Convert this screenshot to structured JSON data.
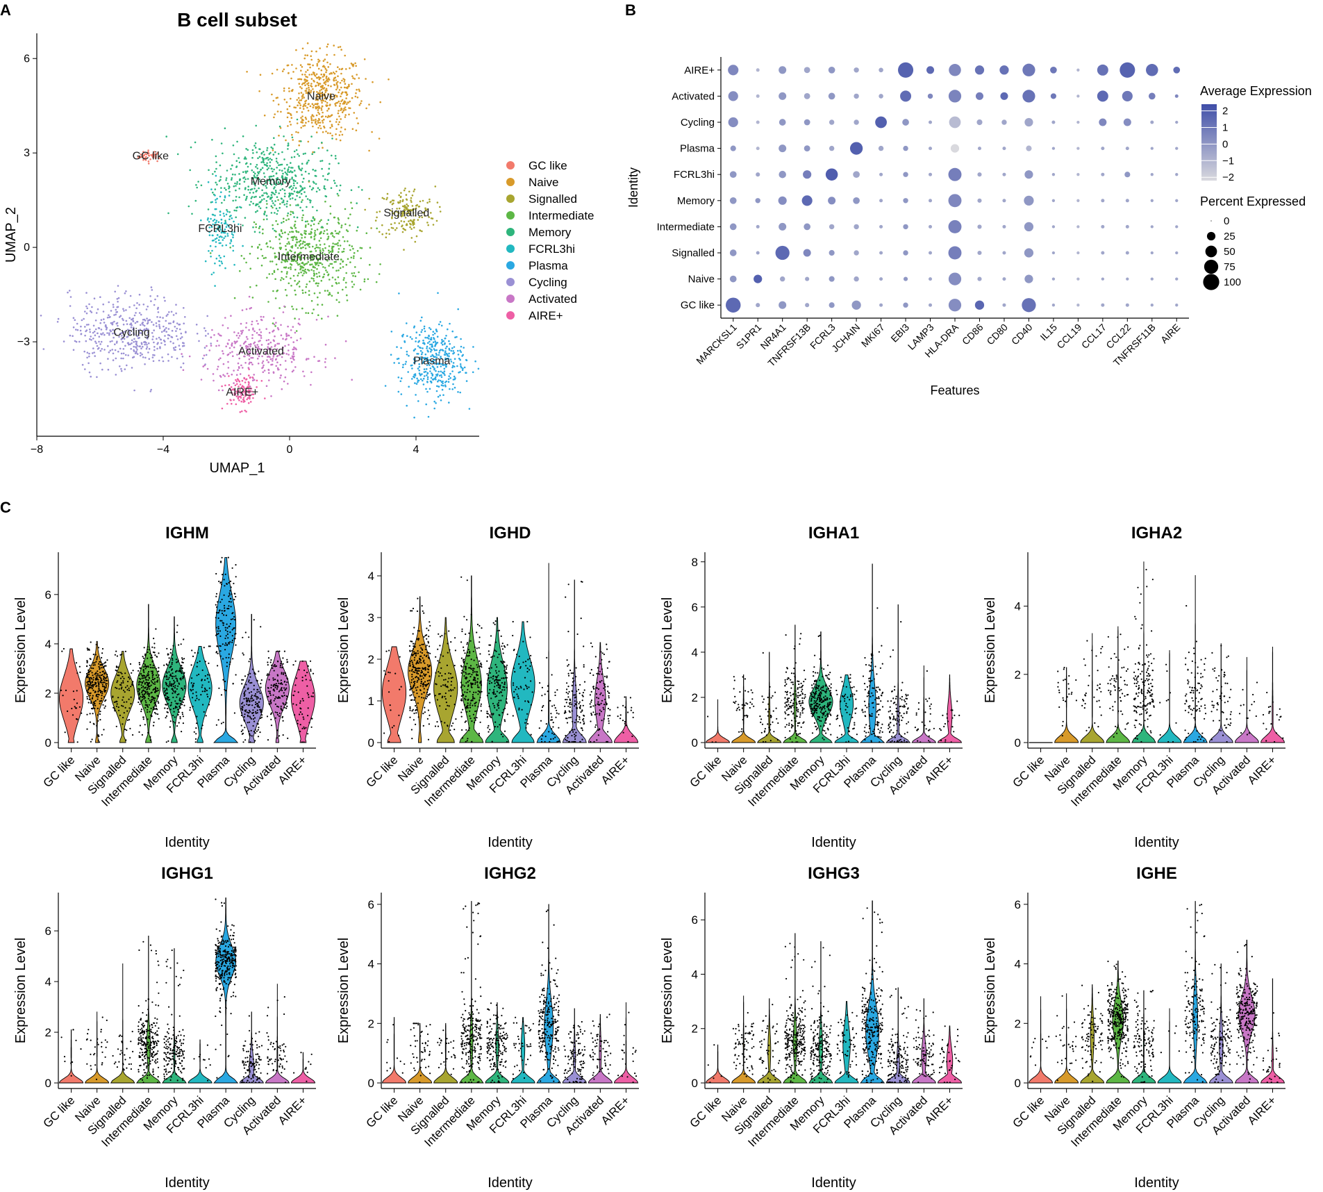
{
  "panel_labels": {
    "a": "A",
    "b": "B",
    "c": "C"
  },
  "colors": {
    "GC like": "#F27A6B",
    "Naive": "#D89A2A",
    "Signalled": "#A8A530",
    "Intermediate": "#5DB745",
    "Memory": "#2EB57C",
    "FCRL3hi": "#22B8C0",
    "Plasma": "#2AA8E2",
    "Cycling": "#9A90D4",
    "Activated": "#C877C6",
    "AIRE+": "#EE5FA5",
    "dot_high": "#3F4EA8",
    "dot_low": "#D9D9DE"
  },
  "identities": [
    "GC like",
    "Naive",
    "Signalled",
    "Intermediate",
    "Memory",
    "FCRL3hi",
    "Plasma",
    "Cycling",
    "Activated",
    "AIRE+"
  ],
  "chart_data": [
    {
      "type": "scatter",
      "title": "B cell subset",
      "xlabel": "UMAP_1",
      "ylabel": "UMAP_2",
      "xlim": [
        -8,
        6
      ],
      "ylim": [
        -6,
        6.8
      ],
      "xticks": [
        -8,
        -4,
        0,
        4
      ],
      "yticks": [
        -3,
        0,
        3,
        6
      ],
      "legend_position": "right",
      "clusters": [
        {
          "name": "GC like",
          "label": "GC like",
          "cx": -4.4,
          "cy": 2.9,
          "sx": 0.25,
          "sy": 0.12,
          "n": 40
        },
        {
          "name": "Naive",
          "label": "Naive",
          "cx": 1.0,
          "cy": 4.8,
          "sx": 0.9,
          "sy": 0.9,
          "n": 520
        },
        {
          "name": "Signalled",
          "label": "Signalled",
          "cx": 3.7,
          "cy": 1.1,
          "sx": 0.6,
          "sy": 0.55,
          "n": 170
        },
        {
          "name": "Intermediate",
          "label": "Intermediate",
          "cx": 0.6,
          "cy": -0.3,
          "sx": 1.1,
          "sy": 1.0,
          "n": 560
        },
        {
          "name": "Memory",
          "label": "Memory",
          "cx": -0.6,
          "cy": 2.1,
          "sx": 1.3,
          "sy": 0.9,
          "n": 520
        },
        {
          "name": "FCRL3hi",
          "label": "FCRL3hi",
          "cx": -2.2,
          "cy": 0.6,
          "sx": 0.35,
          "sy": 0.9,
          "n": 120
        },
        {
          "name": "Plasma",
          "label": "Plasma",
          "cx": 4.5,
          "cy": -3.6,
          "sx": 0.7,
          "sy": 0.8,
          "n": 380
        },
        {
          "name": "Cycling",
          "label": "Cycling",
          "cx": -5.0,
          "cy": -2.7,
          "sx": 1.3,
          "sy": 0.8,
          "n": 460
        },
        {
          "name": "Activated",
          "label": "Activated",
          "cx": -0.9,
          "cy": -3.3,
          "sx": 1.2,
          "sy": 0.7,
          "n": 330
        },
        {
          "name": "AIRE+",
          "label": "AIRE+",
          "cx": -1.5,
          "cy": -4.6,
          "sx": 0.35,
          "sy": 0.35,
          "n": 110
        }
      ]
    },
    {
      "type": "dot",
      "xlabel": "Features",
      "ylabel": "Identity",
      "features": [
        "MARCKSL1",
        "S1PR1",
        "NR4A1",
        "TNFRSF13B",
        "FCRL3",
        "JCHAIN",
        "MKI67",
        "EBI3",
        "LAMP3",
        "HLA-DRA",
        "CD86",
        "CD80",
        "CD40",
        "IL15",
        "CCL19",
        "CCL17",
        "CCL22",
        "TNFRSF11B",
        "AIRE"
      ],
      "rows": [
        "AIRE+",
        "Activated",
        "Cycling",
        "Plasma",
        "FCRL3hi",
        "Memory",
        "Intermediate",
        "Signalled",
        "Naive",
        "GC like"
      ],
      "size_legend_title": "Percent Expressed",
      "size_legend_values": [
        0,
        25,
        50,
        75,
        100
      ],
      "color_legend_title": "Average Expression",
      "color_legend_ticks": [
        2,
        1,
        0,
        -1,
        -2
      ],
      "color_range": [
        -2.2,
        2.4
      ],
      "pct": [
        [
          40,
          3,
          20,
          12,
          15,
          8,
          6,
          90,
          20,
          55,
          30,
          30,
          60,
          15,
          2,
          45,
          90,
          55,
          15
        ],
        [
          35,
          3,
          20,
          12,
          15,
          8,
          6,
          45,
          8,
          60,
          20,
          20,
          60,
          10,
          2,
          45,
          40,
          15,
          3
        ],
        [
          35,
          3,
          15,
          12,
          8,
          8,
          50,
          15,
          3,
          50,
          10,
          8,
          25,
          3,
          2,
          20,
          20,
          3,
          2
        ],
        [
          10,
          3,
          20,
          12,
          8,
          60,
          8,
          8,
          3,
          25,
          3,
          3,
          10,
          2,
          2,
          3,
          3,
          2,
          2
        ],
        [
          15,
          5,
          18,
          25,
          55,
          15,
          3,
          8,
          3,
          65,
          5,
          3,
          25,
          2,
          2,
          3,
          10,
          2,
          2
        ],
        [
          15,
          8,
          25,
          40,
          20,
          15,
          3,
          8,
          3,
          65,
          5,
          3,
          35,
          2,
          2,
          3,
          3,
          2,
          2
        ],
        [
          15,
          3,
          20,
          15,
          8,
          8,
          3,
          8,
          3,
          65,
          5,
          3,
          30,
          2,
          2,
          3,
          3,
          2,
          2
        ],
        [
          15,
          3,
          75,
          20,
          10,
          8,
          3,
          8,
          3,
          65,
          5,
          3,
          30,
          2,
          2,
          3,
          3,
          2,
          2
        ],
        [
          15,
          25,
          8,
          5,
          10,
          8,
          3,
          5,
          3,
          60,
          5,
          3,
          25,
          2,
          2,
          2,
          2,
          2,
          2
        ],
        [
          85,
          5,
          20,
          5,
          10,
          30,
          3,
          8,
          3,
          60,
          30,
          3,
          75,
          2,
          2,
          3,
          3,
          2,
          2
        ]
      ],
      "avg": [
        [
          0.5,
          -1,
          0,
          -0.5,
          0,
          -0.5,
          -0.5,
          1.7,
          1.5,
          0.5,
          1.2,
          1.2,
          1.0,
          1.0,
          -1,
          1.2,
          1.7,
          1.4,
          1.4
        ],
        [
          0.3,
          -1,
          0,
          -0.5,
          0,
          -0.5,
          -0.5,
          1.4,
          0.5,
          0.6,
          0.8,
          1.5,
          1.2,
          1.0,
          -1,
          1.5,
          1.0,
          0.8,
          0.5
        ],
        [
          0.3,
          -1,
          0,
          0,
          -0.5,
          -0.5,
          1.8,
          0,
          -0.5,
          -1.2,
          -0.5,
          -0.5,
          -0.5,
          -0.5,
          -1,
          0.5,
          0.3,
          -0.5,
          -0.5
        ],
        [
          0,
          -1,
          0,
          0,
          -0.5,
          1.8,
          -0.5,
          0,
          -0.5,
          -2.2,
          -0.5,
          -0.5,
          -1,
          -0.5,
          -1,
          -0.5,
          -0.5,
          -0.5,
          -0.5
        ],
        [
          0,
          -0.5,
          0,
          0.8,
          1.9,
          -0.5,
          -0.5,
          0,
          -0.5,
          0.8,
          -0.5,
          -0.5,
          0,
          -0.5,
          -1,
          -0.5,
          0,
          -0.5,
          -0.5
        ],
        [
          0,
          0,
          0.3,
          1.5,
          0.3,
          0,
          -0.5,
          0,
          -0.5,
          0.5,
          -0.5,
          -0.5,
          0,
          -0.5,
          -1,
          -0.5,
          -0.5,
          -0.5,
          -0.5
        ],
        [
          0,
          -0.5,
          0,
          0,
          -0.5,
          -0.5,
          -0.5,
          0,
          -0.5,
          0.7,
          -0.5,
          -0.5,
          0,
          -0.5,
          -1,
          -0.5,
          -0.5,
          -0.5,
          -0.5
        ],
        [
          0,
          -0.5,
          1.5,
          0.5,
          0,
          -0.5,
          -0.5,
          0,
          -0.5,
          0.8,
          -0.5,
          -0.5,
          0,
          -0.5,
          -1,
          -0.5,
          -0.5,
          -0.5,
          -0.5
        ],
        [
          0,
          1.8,
          -0.5,
          -0.5,
          0,
          -0.5,
          -0.5,
          0,
          -0.5,
          0.3,
          -0.5,
          -0.5,
          0,
          -0.5,
          -1,
          -0.5,
          -0.5,
          -0.5,
          -0.5
        ],
        [
          1.5,
          -0.5,
          0,
          -0.5,
          0,
          0,
          -0.5,
          0,
          -0.5,
          0.3,
          1.6,
          -0.5,
          1.2,
          -0.5,
          -1,
          -0.5,
          -0.5,
          -0.5,
          -0.5
        ]
      ]
    },
    {
      "type": "violin",
      "xlabel": "Identity",
      "ylabel": "Expression Level",
      "categories": [
        "GC like",
        "Naive",
        "Signalled",
        "Intermediate",
        "Memory",
        "FCRL3hi",
        "Plasma",
        "Cycling",
        "Activated",
        "AIRE+"
      ],
      "panels": [
        {
          "gene": "IGHM",
          "ymax": 7.6,
          "yticks": [
            0,
            2,
            4,
            6
          ],
          "mode": [
            1.8,
            2.4,
            2.0,
            2.3,
            2.3,
            2.2,
            4.8,
            1.6,
            2.2,
            1.8
          ],
          "zero": [
            0.1,
            0.05,
            0.1,
            0.1,
            0.1,
            0.1,
            0.35,
            0.1,
            0.05,
            0.1
          ],
          "max": [
            3.8,
            4.1,
            3.7,
            5.6,
            5.1,
            3.9,
            7.5,
            5.2,
            3.7,
            3.3
          ],
          "n": [
            25,
            260,
            90,
            260,
            200,
            70,
            150,
            170,
            150,
            60
          ],
          "spread": [
            0.9,
            0.6,
            0.7,
            0.7,
            0.7,
            0.8,
            1.2,
            0.7,
            0.7,
            0.9
          ]
        },
        {
          "gene": "IGHD",
          "ymax": 4.5,
          "yticks": [
            0,
            1,
            2,
            3,
            4
          ],
          "mode": [
            1.2,
            1.7,
            1.3,
            1.4,
            1.3,
            1.4,
            0.6,
            0.8,
            1.0,
            0.5
          ],
          "zero": [
            0.2,
            0.05,
            0.25,
            0.35,
            0.35,
            0.3,
            0.95,
            0.7,
            0.5,
            0.95
          ],
          "max": [
            2.3,
            3.5,
            3.0,
            4.0,
            3.0,
            2.9,
            4.3,
            3.9,
            2.4,
            1.1
          ],
          "n": [
            20,
            260,
            80,
            220,
            170,
            60,
            50,
            140,
            110,
            20
          ],
          "spread": [
            0.6,
            0.5,
            0.6,
            0.6,
            0.6,
            0.6,
            0.5,
            0.5,
            0.5,
            0.3
          ]
        },
        {
          "gene": "IGHA1",
          "ymax": 8.3,
          "yticks": [
            0,
            2,
            4,
            6,
            8
          ],
          "mode": [
            0,
            1.5,
            1.2,
            1.7,
            1.8,
            1.7,
            1.6,
            1.0,
            1.0,
            1.2
          ],
          "zero": [
            1.0,
            0.95,
            0.9,
            0.85,
            0.3,
            0.45,
            0.6,
            0.85,
            0.95,
            0.7
          ],
          "max": [
            1.9,
            3.0,
            4.0,
            5.2,
            4.9,
            3.0,
            7.9,
            6.1,
            3.4,
            3.0
          ],
          "n": [
            3,
            40,
            40,
            160,
            240,
            60,
            120,
            110,
            30,
            20
          ],
          "spread": [
            0.3,
            0.6,
            0.7,
            0.7,
            0.6,
            0.7,
            1.0,
            0.7,
            0.6,
            0.6
          ]
        },
        {
          "gene": "IGHA2",
          "ymax": 5.5,
          "yticks": [
            0,
            2,
            4
          ],
          "mode": [
            0,
            1.5,
            1.3,
            1.6,
            1.5,
            1.3,
            1.4,
            1.2,
            1.0,
            0.8
          ],
          "zero": [
            1.0,
            0.98,
            0.98,
            0.97,
            0.97,
            0.99,
            0.98,
            0.97,
            0.99,
            0.93
          ],
          "max": [
            0,
            2.2,
            3.2,
            3.4,
            5.3,
            2.7,
            4.9,
            2.9,
            2.5,
            2.8
          ],
          "n": [
            0,
            25,
            35,
            60,
            160,
            10,
            90,
            60,
            15,
            20
          ],
          "spread": [
            0.3,
            0.5,
            0.6,
            0.6,
            0.6,
            0.6,
            0.8,
            0.6,
            0.5,
            0.5
          ]
        },
        {
          "gene": "IGHG1",
          "ymax": 7.4,
          "yticks": [
            0,
            2,
            4,
            6
          ],
          "mode": [
            1.2,
            1.4,
            1.2,
            1.5,
            1.1,
            1.2,
            4.8,
            0.6,
            1.0,
            0.6
          ],
          "zero": [
            0.97,
            0.98,
            0.98,
            0.75,
            0.9,
            0.98,
            0.35,
            0.7,
            0.95,
            0.98
          ],
          "max": [
            2.1,
            2.8,
            4.7,
            5.8,
            5.3,
            1.7,
            7.3,
            2.8,
            3.9,
            1.2
          ],
          "n": [
            10,
            30,
            30,
            230,
            170,
            10,
            290,
            110,
            60,
            10
          ],
          "spread": [
            0.4,
            0.4,
            0.5,
            0.6,
            0.5,
            0.4,
            0.6,
            0.5,
            0.5,
            0.4
          ]
        },
        {
          "gene": "IGHG2",
          "ymax": 6.3,
          "yticks": [
            0,
            2,
            4,
            6
          ],
          "mode": [
            1.2,
            1.3,
            1.2,
            1.4,
            1.3,
            1.2,
            1.9,
            0.8,
            1.0,
            0.8
          ],
          "zero": [
            0.98,
            0.97,
            0.96,
            0.8,
            0.8,
            0.75,
            0.55,
            0.85,
            0.85,
            0.97
          ],
          "max": [
            2.2,
            2.0,
            2.0,
            6.1,
            2.7,
            2.2,
            6.0,
            2.5,
            2.3,
            2.7
          ],
          "n": [
            10,
            50,
            30,
            230,
            170,
            40,
            240,
            110,
            60,
            20
          ],
          "spread": [
            0.5,
            0.5,
            0.5,
            0.6,
            0.5,
            0.5,
            0.8,
            0.5,
            0.5,
            0.5
          ]
        },
        {
          "gene": "IGHG3",
          "ymax": 6.9,
          "yticks": [
            0,
            2,
            4,
            6
          ],
          "mode": [
            0.8,
            1.4,
            1.2,
            1.5,
            1.3,
            1.4,
            1.9,
            0.7,
            1.0,
            0.8
          ],
          "zero": [
            0.98,
            0.95,
            0.8,
            0.75,
            0.75,
            0.6,
            0.45,
            0.8,
            0.7,
            0.65
          ],
          "max": [
            1.4,
            3.2,
            3.1,
            5.5,
            5.2,
            3.0,
            6.7,
            3.5,
            3.1,
            2.1
          ],
          "n": [
            5,
            70,
            50,
            260,
            190,
            60,
            260,
            150,
            90,
            40
          ],
          "spread": [
            0.4,
            0.5,
            0.6,
            0.6,
            0.6,
            0.7,
            0.9,
            0.5,
            0.5,
            0.5
          ]
        },
        {
          "gene": "IGHE",
          "ymax": 6.3,
          "yticks": [
            0,
            2,
            4,
            6
          ],
          "mode": [
            1.2,
            1.2,
            1.6,
            2.1,
            1.3,
            1.2,
            2.2,
            1.3,
            2.3,
            0.7
          ],
          "zero": [
            0.98,
            0.98,
            0.75,
            0.5,
            0.95,
            0.99,
            0.7,
            0.75,
            0.4,
            0.9
          ],
          "max": [
            2.9,
            3.0,
            3.3,
            4.1,
            3.1,
            2.5,
            6.1,
            4.0,
            4.8,
            3.5
          ],
          "n": [
            10,
            30,
            90,
            310,
            120,
            5,
            150,
            130,
            240,
            30
          ],
          "spread": [
            0.5,
            0.5,
            0.6,
            0.6,
            0.6,
            0.4,
            0.8,
            0.6,
            0.6,
            0.5
          ]
        }
      ]
    }
  ]
}
